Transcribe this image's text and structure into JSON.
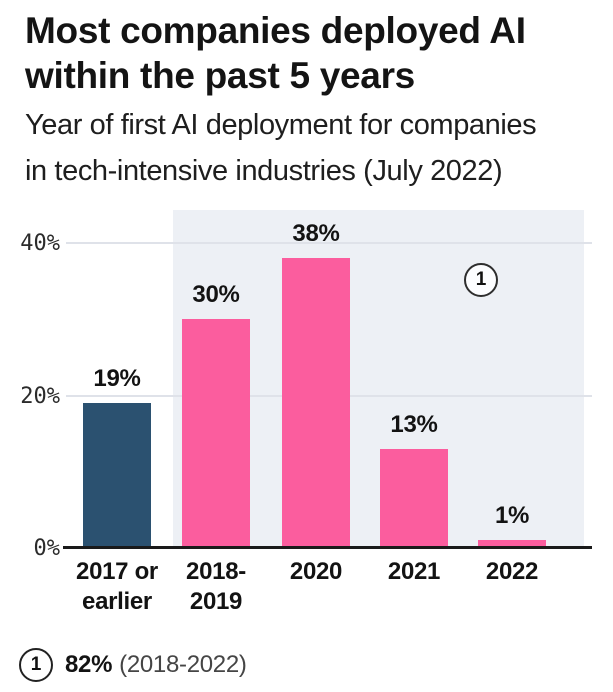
{
  "header": {
    "title_lines": [
      "Most companies deployed AI",
      "within the past 5 years"
    ],
    "subtitle_lines": [
      "Year of first AI deployment for companies",
      "in tech-intensive industries (July 2022)"
    ]
  },
  "chart_data": {
    "type": "bar",
    "title": "Most companies deployed AI within the past 5 years",
    "subtitle": "Year of first AI deployment for companies in tech-intensive industries (July 2022)",
    "categories": [
      "2017 or earlier",
      "2018-2019",
      "2020",
      "2021",
      "2022"
    ],
    "category_display": [
      "2017 or\nearlier",
      "2018-\n2019",
      "2020",
      "2021",
      "2022"
    ],
    "values": [
      19,
      30,
      38,
      13,
      1
    ],
    "value_labels": [
      "19%",
      "30%",
      "38%",
      "13%",
      "1%"
    ],
    "unit": "%",
    "bar_colors": [
      "#2b5170",
      "#fb5d9e",
      "#fb5d9e",
      "#fb5d9e",
      "#fb5d9e"
    ],
    "ylim": [
      0,
      45
    ],
    "y_ticks": [
      {
        "value": 0,
        "label": "0%"
      },
      {
        "value": 20,
        "label": "20%"
      },
      {
        "value": 40,
        "label": "40%"
      }
    ],
    "grid": true,
    "legend_position": "none",
    "highlight_region": {
      "covers_categories": [
        "2018-2019",
        "2020",
        "2021",
        "2022"
      ],
      "color": "#edf0f5"
    },
    "annotation": {
      "marker": "1"
    }
  },
  "footnote": {
    "marker": "1",
    "value": "82%",
    "detail": "(2018-2022)"
  },
  "colors": {
    "bar_pink": "#fb5d9e",
    "bar_navy": "#2b5170",
    "highlight_bg": "#edf0f5",
    "gridline": "#dfe2e9",
    "axis": "#1a1a1a",
    "text": "#141414",
    "footnote_detail": "#454545"
  }
}
